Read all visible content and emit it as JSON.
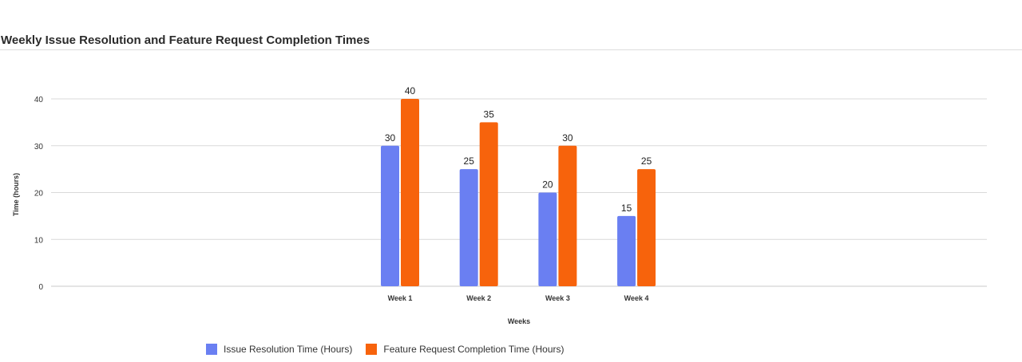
{
  "header": {
    "title": "Weekly Issue Resolution and Feature Request Completion Times"
  },
  "chart_data": {
    "type": "bar",
    "title": "Weekly Issue Resolution and Feature Request Completion Times",
    "xlabel": "Weeks",
    "ylabel": "Time (hours)",
    "categories": [
      "Week 1",
      "Week 2",
      "Week 3",
      "Week 4"
    ],
    "series": [
      {
        "name": "Issue Resolution Time (Hours)",
        "values": [
          30,
          25,
          20,
          15
        ],
        "color": "#6A7FF2"
      },
      {
        "name": "Feature Request Completion Time (Hours)",
        "values": [
          40,
          35,
          30,
          25
        ],
        "color": "#F7630C"
      }
    ],
    "ylim": [
      0,
      40
    ],
    "yticks": [
      0,
      10,
      20,
      30,
      40
    ],
    "grid": true,
    "data_labels": true,
    "legend_position": "bottom"
  }
}
